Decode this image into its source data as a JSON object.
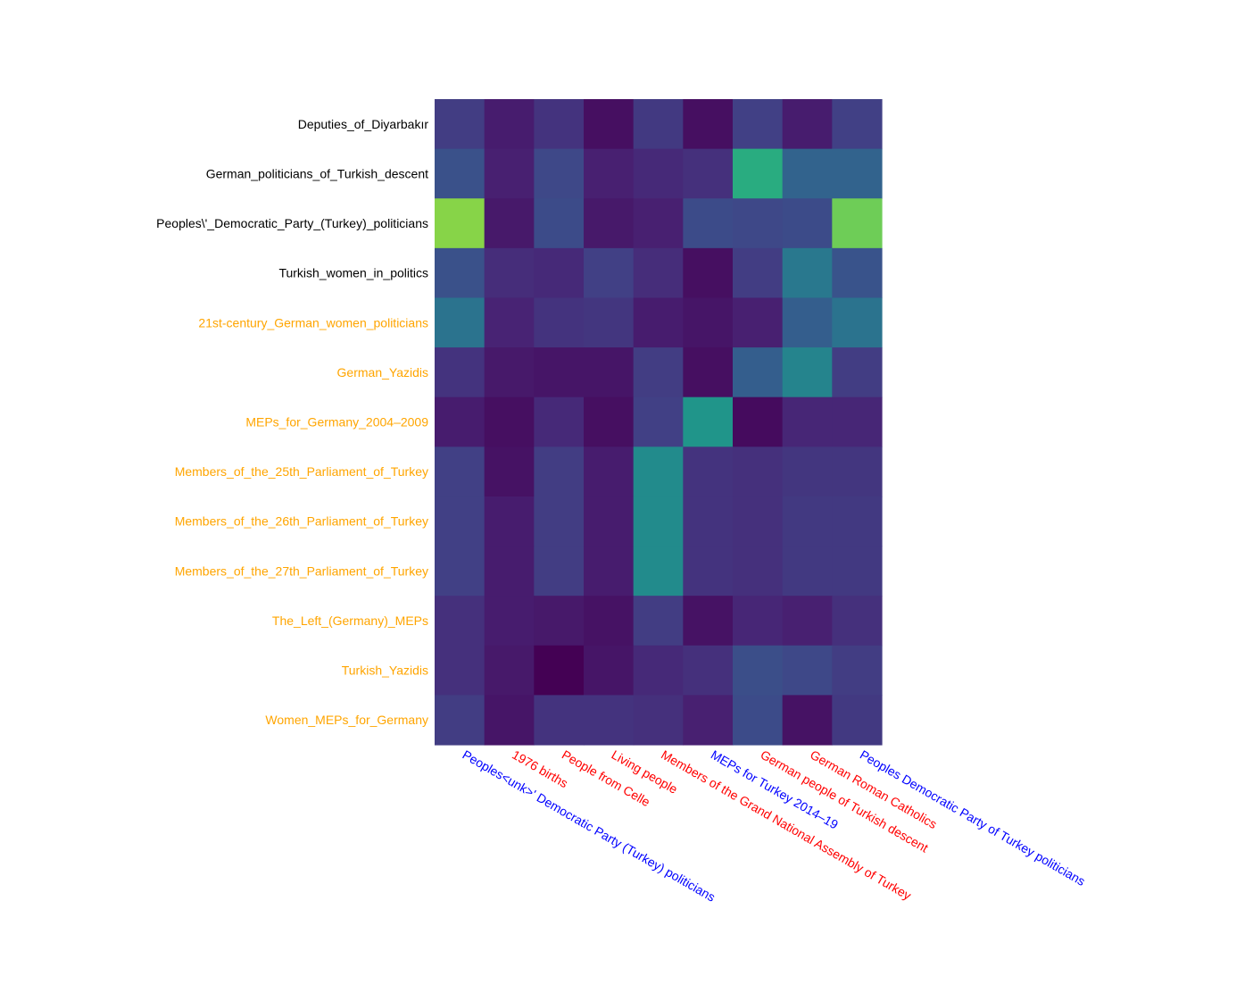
{
  "chart_data": {
    "type": "heatmap",
    "title": "",
    "xlabel": "",
    "ylabel": "",
    "grid": false,
    "legend": "none",
    "colormap": "viridis",
    "value_range": [
      0,
      1
    ],
    "rows": [
      {
        "label": "Deputies_of_Diyarbakır",
        "color": "#000000"
      },
      {
        "label": "German_politicians_of_Turkish_descent",
        "color": "#000000"
      },
      {
        "label": "Peoples\\'_Democratic_Party_(Turkey)_politicians",
        "color": "#000000"
      },
      {
        "label": "Turkish_women_in_politics",
        "color": "#000000"
      },
      {
        "label": "21st-century_German_women_politicians",
        "color": "#ffa500"
      },
      {
        "label": "German_Yazidis",
        "color": "#ffa500"
      },
      {
        "label": "MEPs_for_Germany_2004–2009",
        "color": "#ffa500"
      },
      {
        "label": "Members_of_the_25th_Parliament_of_Turkey",
        "color": "#ffa500"
      },
      {
        "label": "Members_of_the_26th_Parliament_of_Turkey",
        "color": "#ffa500"
      },
      {
        "label": "Members_of_the_27th_Parliament_of_Turkey",
        "color": "#ffa500"
      },
      {
        "label": "The_Left_(Germany)_MEPs",
        "color": "#ffa500"
      },
      {
        "label": "Turkish_Yazidis",
        "color": "#ffa500"
      },
      {
        "label": "Women_MEPs_for_Germany",
        "color": "#ffa500"
      }
    ],
    "columns": [
      {
        "label": "Peoples<unk>' Democratic Party (Turkey) politicians",
        "color": "#0000ff"
      },
      {
        "label": "1976 births",
        "color": "#ff0000"
      },
      {
        "label": "People from Celle",
        "color": "#ff0000"
      },
      {
        "label": "Living people",
        "color": "#ff0000"
      },
      {
        "label": "Members of the Grand National Assembly of Turkey",
        "color": "#ff0000"
      },
      {
        "label": "MEPs for Turkey 2014–19",
        "color": "#0000ff"
      },
      {
        "label": "German people of Turkish descent",
        "color": "#ff0000"
      },
      {
        "label": "German Roman Catholics",
        "color": "#ff0000"
      },
      {
        "label": "Peoples Democratic Party of Turkey politicians",
        "color": "#0000ff"
      }
    ],
    "values": [
      [
        0.18,
        0.08,
        0.15,
        0.04,
        0.17,
        0.04,
        0.19,
        0.08,
        0.19
      ],
      [
        0.25,
        0.09,
        0.22,
        0.09,
        0.12,
        0.14,
        0.62,
        0.32,
        0.32
      ],
      [
        0.82,
        0.07,
        0.23,
        0.07,
        0.09,
        0.23,
        0.22,
        0.23,
        0.78
      ],
      [
        0.25,
        0.13,
        0.12,
        0.19,
        0.13,
        0.04,
        0.18,
        0.4,
        0.26
      ],
      [
        0.38,
        0.1,
        0.15,
        0.16,
        0.08,
        0.06,
        0.09,
        0.3,
        0.38
      ],
      [
        0.15,
        0.07,
        0.06,
        0.06,
        0.18,
        0.04,
        0.3,
        0.45,
        0.18
      ],
      [
        0.08,
        0.04,
        0.12,
        0.04,
        0.19,
        0.52,
        0.03,
        0.11,
        0.11
      ],
      [
        0.19,
        0.05,
        0.18,
        0.08,
        0.48,
        0.15,
        0.14,
        0.16,
        0.16
      ],
      [
        0.19,
        0.08,
        0.18,
        0.08,
        0.48,
        0.15,
        0.14,
        0.17,
        0.17
      ],
      [
        0.19,
        0.08,
        0.18,
        0.08,
        0.48,
        0.15,
        0.14,
        0.17,
        0.17
      ],
      [
        0.14,
        0.08,
        0.07,
        0.05,
        0.18,
        0.05,
        0.11,
        0.09,
        0.14
      ],
      [
        0.14,
        0.07,
        0.0,
        0.06,
        0.12,
        0.14,
        0.24,
        0.22,
        0.18
      ],
      [
        0.18,
        0.06,
        0.15,
        0.15,
        0.14,
        0.09,
        0.23,
        0.05,
        0.17
      ]
    ]
  }
}
